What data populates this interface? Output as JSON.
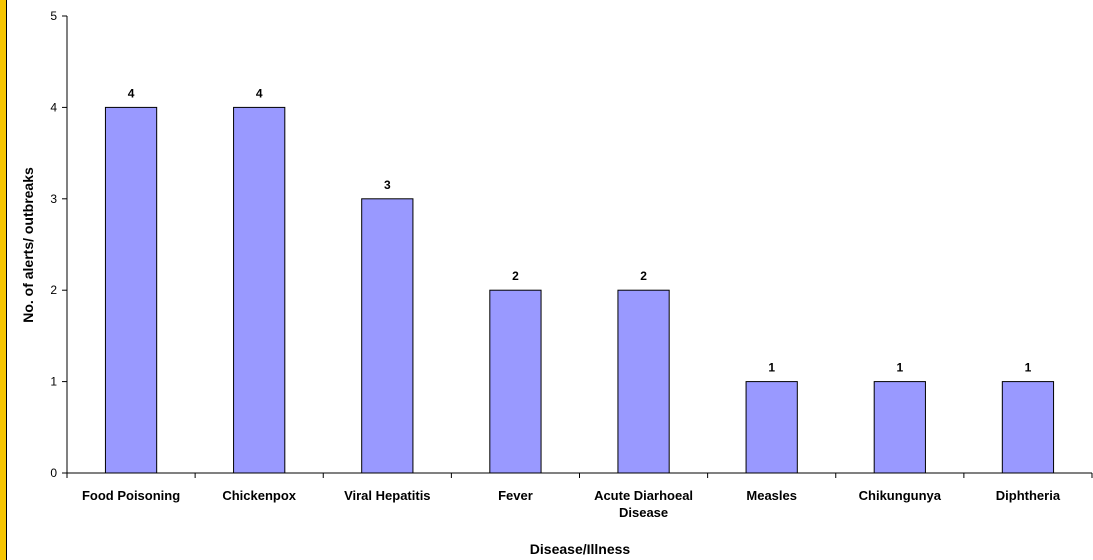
{
  "chart_data": {
    "type": "bar",
    "title": "",
    "xlabel": "Disease/Illness",
    "ylabel": "No. of alerts/ outbreaks",
    "categories": [
      [
        "Food Poisoning"
      ],
      [
        "Chickenpox"
      ],
      [
        "Viral Hepatitis"
      ],
      [
        "Fever"
      ],
      [
        "Acute Diarhoeal",
        "Disease"
      ],
      [
        "Measles"
      ],
      [
        "Chikungunya"
      ],
      [
        "Diphtheria"
      ]
    ],
    "values": [
      4,
      4,
      3,
      2,
      2,
      1,
      1,
      1
    ],
    "ylim": [
      0,
      5
    ],
    "yticks": [
      "0",
      "1",
      "2",
      "3",
      "4",
      "5"
    ],
    "grid": false,
    "legend": "none",
    "bar_color": "#9999ff",
    "bar_edge_color": "#000000",
    "border_color": "#f5c400"
  }
}
